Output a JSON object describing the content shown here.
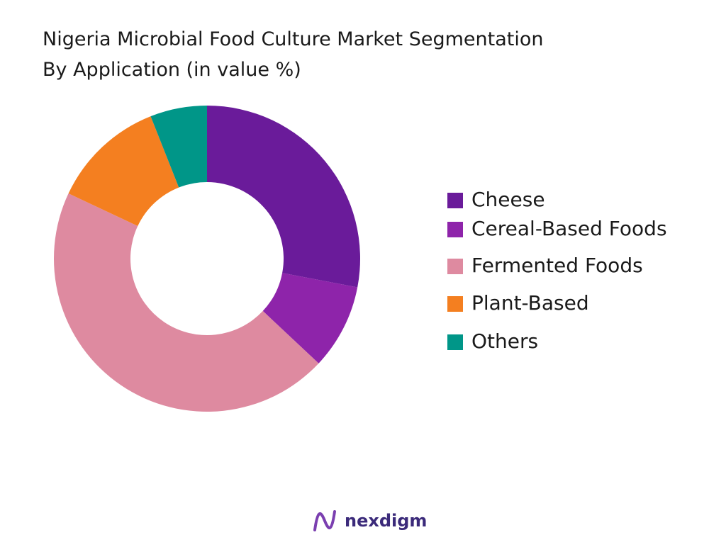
{
  "chart_data": {
    "type": "donut",
    "title": [
      "Nigeria Microbial Food Culture Market Segmentation",
      "By Application (in value %)"
    ],
    "categories": [
      "Cheese",
      "Cereal-Based Foods",
      "Fermented Foods",
      "Plant-Based",
      "Others"
    ],
    "values": [
      28,
      9,
      45,
      12,
      6
    ],
    "colors": [
      "#6a1b9a",
      "#8e24aa",
      "#de8aa0",
      "#f47f20",
      "#009688"
    ],
    "legend": "right",
    "brand": "nexdigm"
  }
}
